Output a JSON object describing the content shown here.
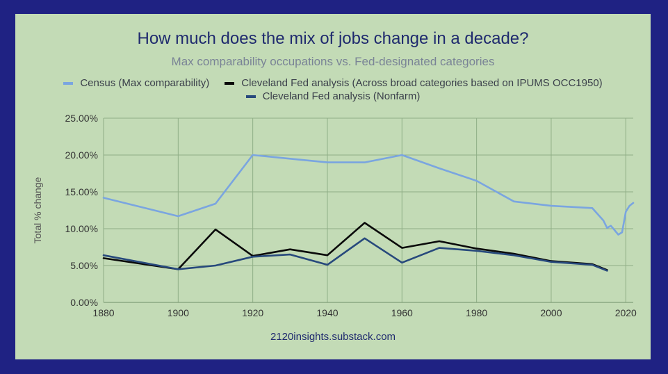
{
  "chart_data": {
    "type": "line",
    "title": "How much does the mix of jobs change in a decade?",
    "subtitle": "Max comparability occupations vs. Fed-designated categories",
    "xlabel": "",
    "ylabel": "Total % change",
    "xlim": [
      1880,
      2022
    ],
    "ylim": [
      0,
      25
    ],
    "x_ticks": [
      "1880",
      "1900",
      "1920",
      "1940",
      "1960",
      "1980",
      "2000",
      "2020"
    ],
    "x_tick_values": [
      1880,
      1900,
      1920,
      1940,
      1960,
      1980,
      2000,
      2020
    ],
    "y_ticks": [
      "0.00%",
      "5.00%",
      "10.00%",
      "15.00%",
      "20.00%",
      "25.00%"
    ],
    "y_tick_values": [
      0,
      5,
      10,
      15,
      20,
      25
    ],
    "grid": true,
    "legend_position": "top",
    "series": [
      {
        "name": "Census (Max comparability)",
        "color": "#7aa5e0",
        "x": [
          1880,
          1900,
          1910,
          1920,
          1930,
          1940,
          1950,
          1960,
          1970,
          1980,
          1990,
          2000,
          2011,
          2014,
          2015,
          2016,
          2017,
          2018,
          2019,
          2020,
          2021,
          2022
        ],
        "y": [
          14.2,
          11.7,
          13.4,
          20.0,
          19.5,
          19.0,
          19.0,
          20.0,
          18.2,
          16.5,
          13.7,
          13.1,
          12.8,
          11.1,
          10.1,
          10.4,
          9.8,
          9.2,
          9.5,
          12.3,
          13.1,
          13.5
        ]
      },
      {
        "name": "Cleveland Fed analysis (Across broad categories based on IPUMS OCC1950)",
        "color": "#0a0a0a",
        "x": [
          1880,
          1900,
          1910,
          1920,
          1930,
          1940,
          1950,
          1960,
          1970,
          1980,
          1990,
          2000,
          2011,
          2015
        ],
        "y": [
          6.0,
          4.5,
          9.9,
          6.3,
          7.2,
          6.4,
          10.8,
          7.4,
          8.3,
          7.3,
          6.6,
          5.6,
          5.2,
          4.4
        ]
      },
      {
        "name": "Cleveland Fed analysis (Nonfarm)",
        "color": "#27497c",
        "x": [
          1880,
          1900,
          1910,
          1920,
          1930,
          1940,
          1950,
          1960,
          1970,
          1980,
          1990,
          2000,
          2011,
          2015
        ],
        "y": [
          6.4,
          4.5,
          5.0,
          6.2,
          6.5,
          5.1,
          8.7,
          5.4,
          7.4,
          7.0,
          6.4,
          5.5,
          5.1,
          4.3
        ]
      }
    ]
  },
  "footer": {
    "credit": "2120insights.substack.com"
  }
}
